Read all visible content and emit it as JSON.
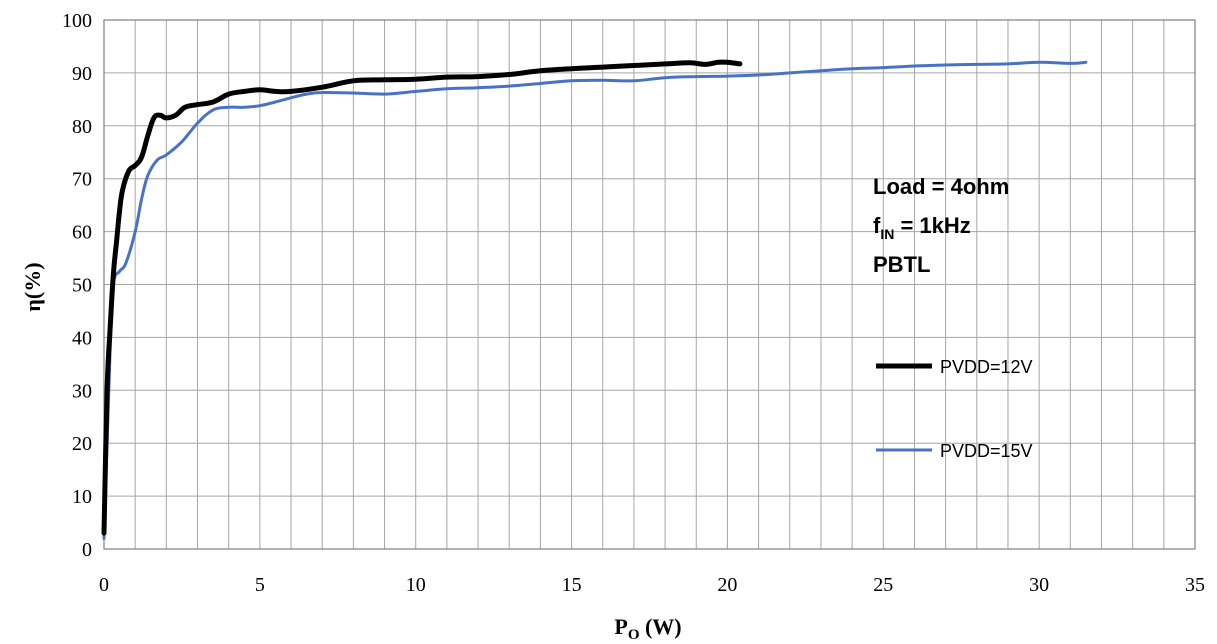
{
  "chart_data": {
    "type": "line",
    "xlabel": {
      "main": "P",
      "sub": "O",
      "suffix": " (W)"
    },
    "ylabel": "η(%)",
    "xlim": [
      0,
      35
    ],
    "ylim": [
      0,
      100
    ],
    "xticks": [
      "0",
      "5",
      "10",
      "15",
      "20",
      "25",
      "30",
      "35"
    ],
    "yticks": [
      "0",
      "10",
      "20",
      "30",
      "40",
      "50",
      "60",
      "70",
      "80",
      "90",
      "100"
    ],
    "grid": {
      "x_minor_step": 1,
      "y_step": 10
    },
    "annotation": {
      "line1": "Load = 4ohm",
      "line2_main": "f",
      "line2_sub": "IN",
      "line2_rest": " = 1kHz",
      "line3": "PBTL"
    },
    "legend_placement": "right",
    "series": [
      {
        "name": "PVDD=12V",
        "color": "#000000",
        "x": [
          0.0,
          0.1,
          0.2,
          0.3,
          0.4,
          0.5,
          0.6,
          0.8,
          1.0,
          1.2,
          1.4,
          1.6,
          1.8,
          2.0,
          2.3,
          2.6,
          3.0,
          3.5,
          4.0,
          4.5,
          5.0,
          5.5,
          6.0,
          7.0,
          8.0,
          9.0,
          10.0,
          11.0,
          12.0,
          13.0,
          14.0,
          15.0,
          16.0,
          17.0,
          18.0,
          18.8,
          19.3,
          19.7,
          20.0,
          20.4
        ],
        "y": [
          3,
          30,
          42,
          52,
          58,
          64,
          68,
          71.5,
          72.5,
          74,
          78,
          81.5,
          82,
          81.5,
          82,
          83.5,
          84,
          84.5,
          86,
          86.5,
          86.8,
          86.5,
          86.5,
          87.3,
          88.5,
          88.7,
          88.8,
          89.2,
          89.3,
          89.7,
          90.4,
          90.8,
          91.1,
          91.4,
          91.7,
          91.9,
          91.6,
          92,
          92,
          91.7
        ]
      },
      {
        "name": "PVDD=15V",
        "color": "#4a72c4",
        "x": [
          0.0,
          0.1,
          0.2,
          0.3,
          0.5,
          0.7,
          1.0,
          1.2,
          1.4,
          1.7,
          2.0,
          2.5,
          3.0,
          3.5,
          4.0,
          4.5,
          5.0,
          5.5,
          6.0,
          6.5,
          7.0,
          8.0,
          9.0,
          10.0,
          11.0,
          12.0,
          13.0,
          14.0,
          15.0,
          16.0,
          17.0,
          18.0,
          19.0,
          20.0,
          21.0,
          22.0,
          23.0,
          24.0,
          25.0,
          26.0,
          27.0,
          28.0,
          29.0,
          30.0,
          31.0,
          31.5
        ],
        "y": [
          2,
          20,
          38,
          50,
          52.5,
          54,
          60,
          66,
          70.5,
          73.5,
          74.5,
          77,
          80.5,
          83,
          83.5,
          83.5,
          83.8,
          84.5,
          85.3,
          86,
          86.3,
          86.2,
          86,
          86.5,
          87,
          87.2,
          87.5,
          88,
          88.5,
          88.6,
          88.5,
          89.1,
          89.3,
          89.4,
          89.6,
          90,
          90.4,
          90.8,
          91,
          91.3,
          91.5,
          91.6,
          91.7,
          92,
          91.8,
          92
        ]
      }
    ]
  }
}
